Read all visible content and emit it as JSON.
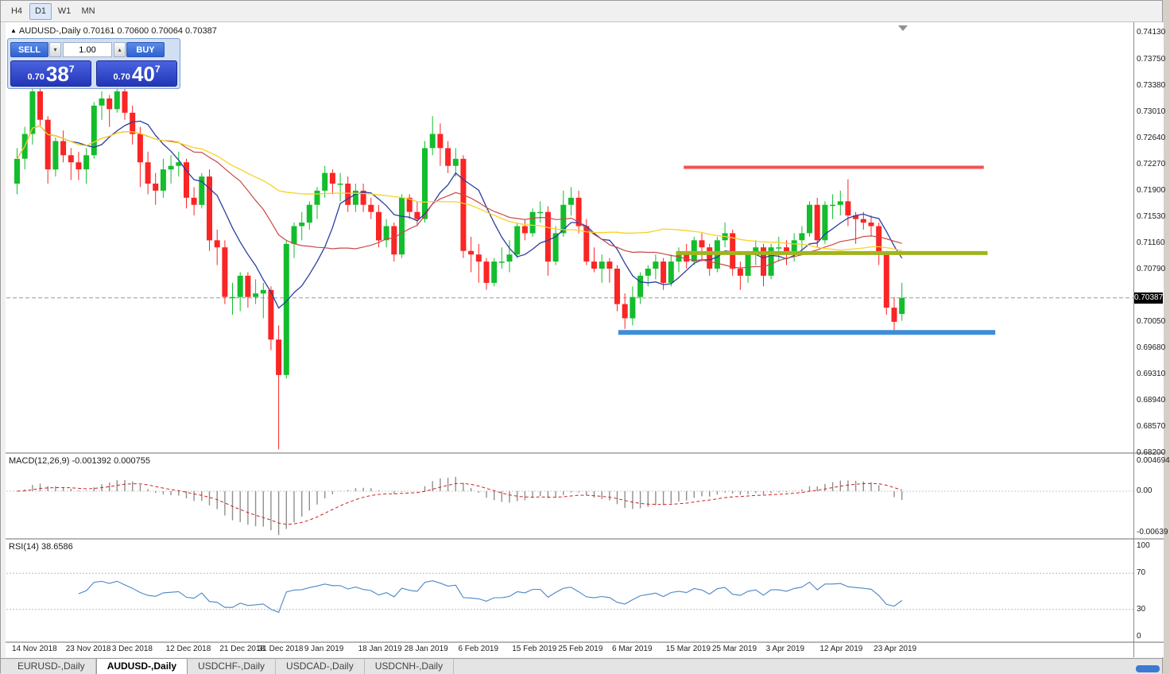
{
  "toolbar": {
    "buttons": [
      "H4",
      "D1",
      "W1",
      "MN"
    ],
    "active": "D1"
  },
  "chart": {
    "symbol_title": "AUDUSD-,Daily  0.70161 0.70600 0.70064 0.70387",
    "collapse_icon": "▲"
  },
  "trade_panel": {
    "sell_label": "SELL",
    "buy_label": "BUY",
    "volume": "1.00",
    "down_icon": "▾",
    "up_icon": "▴",
    "sell_small": "0.70",
    "sell_big": "38",
    "sell_sup": "7",
    "buy_small": "0.70",
    "buy_big": "40",
    "buy_sup": "7"
  },
  "chart_data": {
    "type": "candlestick",
    "symbol": "AUDUSD-,Daily",
    "ohlc_title": {
      "open": "0.70161",
      "high": "0.70600",
      "low": "0.70064",
      "close": "0.70387"
    },
    "current_price": 0.70387,
    "current_price_label": "0.70387",
    "colors": {
      "bull": "#13bd2c",
      "bear": "#fa2525"
    },
    "y_axis": {
      "ticks": [
        "0.74130",
        "0.73750",
        "0.73380",
        "0.73010",
        "0.72640",
        "0.72270",
        "0.71900",
        "0.71530",
        "0.71160",
        "0.70790",
        "0.70050",
        "0.69680",
        "0.69310",
        "0.68940",
        "0.68570",
        "0.68200"
      ]
    },
    "x_axis": {
      "labels": [
        [
          "14 Nov 2018",
          0
        ],
        [
          "23 Nov 2018",
          7
        ],
        [
          "3 Dec 2018",
          13
        ],
        [
          "12 Dec 2018",
          20
        ],
        [
          "21 Dec 2018",
          27
        ],
        [
          "31 Dec 2018",
          32
        ],
        [
          "9 Jan 2019",
          38
        ],
        [
          "18 Jan 2019",
          45
        ],
        [
          "28 Jan 2019",
          51
        ],
        [
          "6 Feb 2019",
          58
        ],
        [
          "15 Feb 2019",
          65
        ],
        [
          "25 Feb 2019",
          71
        ],
        [
          "6 Mar 2019",
          78
        ],
        [
          "15 Mar 2019",
          85
        ],
        [
          "25 Mar 2019",
          91
        ],
        [
          "3 Apr 2019",
          98
        ],
        [
          "12 Apr 2019",
          105
        ],
        [
          "23 Apr 2019",
          112
        ]
      ]
    },
    "moving_averages": [
      {
        "period": 8,
        "color": "#2c3e9e",
        "width": 1.3
      },
      {
        "period": 20,
        "color": "#c84848",
        "width": 1.2
      },
      {
        "period": 50,
        "color": "#f5d327",
        "width": 1.3
      }
    ],
    "levels": [
      {
        "price": 0.7223,
        "from": 87,
        "to": 126,
        "color": "#ef5350",
        "width": 4
      },
      {
        "price": 0.7102,
        "from": 86,
        "to": 126.5,
        "color": "#a0b41e",
        "width": 5
      },
      {
        "price": 0.699,
        "from": 78.5,
        "to": 127.5,
        "color": "#3d8ed8",
        "width": 6
      }
    ],
    "candles": [
      [
        0.72,
        0.725,
        0.7185,
        0.7235
      ],
      [
        0.7235,
        0.728,
        0.722,
        0.727
      ],
      [
        0.727,
        0.7337,
        0.7255,
        0.733
      ],
      [
        0.733,
        0.7338,
        0.728,
        0.729
      ],
      [
        0.729,
        0.7295,
        0.72,
        0.722
      ],
      [
        0.722,
        0.7265,
        0.721,
        0.726
      ],
      [
        0.726,
        0.7275,
        0.723,
        0.724
      ],
      [
        0.724,
        0.725,
        0.7205,
        0.723
      ],
      [
        0.723,
        0.7245,
        0.7205,
        0.722
      ],
      [
        0.722,
        0.725,
        0.72,
        0.724
      ],
      [
        0.724,
        0.7315,
        0.7235,
        0.731
      ],
      [
        0.731,
        0.733,
        0.729,
        0.732
      ],
      [
        0.732,
        0.7325,
        0.728,
        0.7305
      ],
      [
        0.7305,
        0.734,
        0.73,
        0.733
      ],
      [
        0.733,
        0.7345,
        0.729,
        0.73
      ],
      [
        0.73,
        0.731,
        0.7255,
        0.727
      ],
      [
        0.727,
        0.728,
        0.7195,
        0.723
      ],
      [
        0.723,
        0.7245,
        0.7185,
        0.72
      ],
      [
        0.72,
        0.7215,
        0.717,
        0.719
      ],
      [
        0.719,
        0.7235,
        0.718,
        0.722
      ],
      [
        0.722,
        0.724,
        0.72,
        0.7225
      ],
      [
        0.7225,
        0.7245,
        0.721,
        0.723
      ],
      [
        0.723,
        0.7235,
        0.7165,
        0.718
      ],
      [
        0.718,
        0.7195,
        0.7155,
        0.717
      ],
      [
        0.717,
        0.7215,
        0.7165,
        0.721
      ],
      [
        0.721,
        0.722,
        0.7105,
        0.712
      ],
      [
        0.712,
        0.7135,
        0.7085,
        0.711
      ],
      [
        0.711,
        0.712,
        0.703,
        0.704
      ],
      [
        0.704,
        0.706,
        0.7015,
        0.704
      ],
      [
        0.704,
        0.7075,
        0.702,
        0.707
      ],
      [
        0.707,
        0.7075,
        0.7025,
        0.704
      ],
      [
        0.704,
        0.7065,
        0.703,
        0.7045
      ],
      [
        0.7045,
        0.706,
        0.701,
        0.705
      ],
      [
        0.705,
        0.7055,
        0.6965,
        0.698
      ],
      [
        0.698,
        0.7,
        0.6825,
        0.693
      ],
      [
        0.693,
        0.712,
        0.6925,
        0.7115
      ],
      [
        0.7115,
        0.7145,
        0.7095,
        0.714
      ],
      [
        0.714,
        0.716,
        0.712,
        0.7145
      ],
      [
        0.7145,
        0.7175,
        0.7135,
        0.717
      ],
      [
        0.717,
        0.7195,
        0.715,
        0.719
      ],
      [
        0.719,
        0.7225,
        0.718,
        0.7215
      ],
      [
        0.7215,
        0.722,
        0.7185,
        0.72
      ],
      [
        0.72,
        0.7215,
        0.7175,
        0.72
      ],
      [
        0.72,
        0.721,
        0.716,
        0.717
      ],
      [
        0.717,
        0.72,
        0.716,
        0.719
      ],
      [
        0.719,
        0.72,
        0.716,
        0.717
      ],
      [
        0.717,
        0.718,
        0.715,
        0.716
      ],
      [
        0.716,
        0.717,
        0.711,
        0.712
      ],
      [
        0.712,
        0.715,
        0.711,
        0.714
      ],
      [
        0.714,
        0.7145,
        0.709,
        0.71
      ],
      [
        0.71,
        0.7185,
        0.7095,
        0.718
      ],
      [
        0.718,
        0.7185,
        0.715,
        0.716
      ],
      [
        0.716,
        0.7175,
        0.714,
        0.715
      ],
      [
        0.715,
        0.726,
        0.7145,
        0.725
      ],
      [
        0.725,
        0.7295,
        0.724,
        0.727
      ],
      [
        0.727,
        0.7285,
        0.7225,
        0.725
      ],
      [
        0.725,
        0.726,
        0.7215,
        0.7225
      ],
      [
        0.7225,
        0.725,
        0.721,
        0.7235
      ],
      [
        0.7235,
        0.724,
        0.7095,
        0.7105
      ],
      [
        0.7105,
        0.7125,
        0.7075,
        0.71
      ],
      [
        0.71,
        0.7115,
        0.706,
        0.709
      ],
      [
        0.709,
        0.7095,
        0.705,
        0.706
      ],
      [
        0.706,
        0.7095,
        0.7055,
        0.709
      ],
      [
        0.709,
        0.711,
        0.708,
        0.709
      ],
      [
        0.709,
        0.712,
        0.7075,
        0.71
      ],
      [
        0.71,
        0.7145,
        0.7095,
        0.714
      ],
      [
        0.714,
        0.715,
        0.712,
        0.713
      ],
      [
        0.713,
        0.7165,
        0.7125,
        0.716
      ],
      [
        0.716,
        0.7175,
        0.7145,
        0.716
      ],
      [
        0.716,
        0.7168,
        0.707,
        0.709
      ],
      [
        0.709,
        0.714,
        0.7085,
        0.713
      ],
      [
        0.713,
        0.719,
        0.7125,
        0.717
      ],
      [
        0.717,
        0.7195,
        0.7155,
        0.718
      ],
      [
        0.718,
        0.719,
        0.713,
        0.714
      ],
      [
        0.714,
        0.715,
        0.7085,
        0.709
      ],
      [
        0.709,
        0.711,
        0.7075,
        0.708
      ],
      [
        0.708,
        0.71,
        0.706,
        0.709
      ],
      [
        0.709,
        0.7095,
        0.706,
        0.708
      ],
      [
        0.708,
        0.7085,
        0.702,
        0.703
      ],
      [
        0.703,
        0.7045,
        0.6995,
        0.701
      ],
      [
        0.701,
        0.7055,
        0.7,
        0.704
      ],
      [
        0.704,
        0.7075,
        0.703,
        0.707
      ],
      [
        0.707,
        0.7085,
        0.7055,
        0.708
      ],
      [
        0.708,
        0.71,
        0.7065,
        0.709
      ],
      [
        0.709,
        0.7095,
        0.705,
        0.706
      ],
      [
        0.706,
        0.71,
        0.7055,
        0.709
      ],
      [
        0.709,
        0.711,
        0.7075,
        0.71
      ],
      [
        0.71,
        0.7115,
        0.708,
        0.709
      ],
      [
        0.709,
        0.7125,
        0.7085,
        0.712
      ],
      [
        0.712,
        0.713,
        0.709,
        0.711
      ],
      [
        0.711,
        0.7115,
        0.707,
        0.708
      ],
      [
        0.708,
        0.7125,
        0.7075,
        0.712
      ],
      [
        0.712,
        0.7145,
        0.711,
        0.713
      ],
      [
        0.713,
        0.7135,
        0.707,
        0.708
      ],
      [
        0.708,
        0.709,
        0.705,
        0.707
      ],
      [
        0.707,
        0.7105,
        0.706,
        0.71
      ],
      [
        0.71,
        0.712,
        0.7085,
        0.711
      ],
      [
        0.711,
        0.7115,
        0.7055,
        0.707
      ],
      [
        0.707,
        0.7115,
        0.7065,
        0.711
      ],
      [
        0.711,
        0.7125,
        0.709,
        0.711
      ],
      [
        0.711,
        0.712,
        0.7085,
        0.71
      ],
      [
        0.71,
        0.713,
        0.709,
        0.712
      ],
      [
        0.712,
        0.714,
        0.7105,
        0.713
      ],
      [
        0.713,
        0.7175,
        0.7125,
        0.717
      ],
      [
        0.717,
        0.718,
        0.711,
        0.712
      ],
      [
        0.712,
        0.7175,
        0.7115,
        0.717
      ],
      [
        0.717,
        0.7185,
        0.715,
        0.717
      ],
      [
        0.717,
        0.719,
        0.7155,
        0.7175
      ],
      [
        0.7175,
        0.7206,
        0.714,
        0.7155
      ],
      [
        0.7155,
        0.716,
        0.7115,
        0.715
      ],
      [
        0.715,
        0.716,
        0.7135,
        0.7145
      ],
      [
        0.7145,
        0.7155,
        0.7125,
        0.714
      ],
      [
        0.714,
        0.7145,
        0.7085,
        0.71
      ],
      [
        0.71,
        0.7105,
        0.7015,
        0.7025
      ],
      [
        0.7025,
        0.704,
        0.6988,
        0.7005
      ],
      [
        0.70161,
        0.706,
        0.70064,
        0.70387
      ]
    ]
  },
  "macd": {
    "label": "MACD(12,26,9) -0.001392 0.000755",
    "fast": 12,
    "slow": 26,
    "signal": 9,
    "hist_color": "#8f8f8f",
    "signal_color": "#cc2222",
    "ticks": [
      "0.004694",
      "0.00",
      "-0.00639"
    ]
  },
  "rsi": {
    "label": "RSI(14) 38.6586",
    "period": 14,
    "color": "#4a86c8",
    "levels": [
      70,
      30
    ],
    "ticks": [
      "100",
      "70",
      "30",
      "0"
    ]
  },
  "tabs": {
    "items": [
      {
        "label": "EURUSD-,Daily",
        "active": false
      },
      {
        "label": "AUDUSD-,Daily",
        "active": true
      },
      {
        "label": "USDCHF-,Daily",
        "active": false
      },
      {
        "label": "USDCAD-,Daily",
        "active": false
      },
      {
        "label": "USDCNH-,Daily",
        "active": false
      }
    ]
  }
}
